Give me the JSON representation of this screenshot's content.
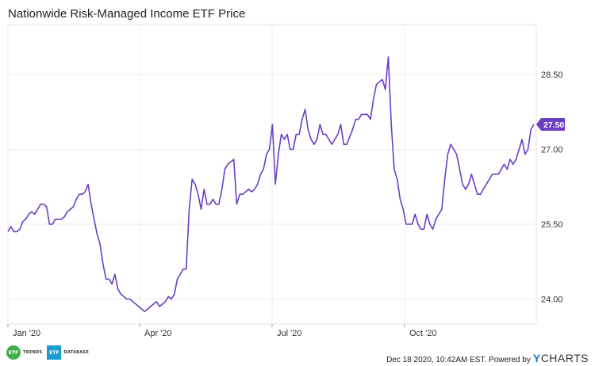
{
  "chart_data": {
    "type": "line",
    "title": "Nationwide Risk-Managed Income ETF Price",
    "x_ticks": [
      "Jan '20",
      "Apr '20",
      "Jul '20",
      "Oct '20"
    ],
    "y_ticks": [
      "24.00",
      "25.50",
      "27.00",
      "28.50"
    ],
    "ylim": [
      23.5,
      29.5
    ],
    "grid": true,
    "series": [
      {
        "color": "#6a3fc4",
        "values": [
          25.35,
          25.45,
          25.35,
          25.35,
          25.4,
          25.55,
          25.6,
          25.7,
          25.75,
          25.7,
          25.8,
          25.9,
          25.9,
          25.85,
          25.5,
          25.5,
          25.6,
          25.6,
          25.6,
          25.65,
          25.75,
          25.8,
          25.85,
          26.0,
          26.1,
          26.1,
          26.15,
          26.3,
          25.9,
          25.6,
          25.3,
          25.1,
          24.7,
          24.4,
          24.4,
          24.3,
          24.5,
          24.2,
          24.1,
          24.05,
          24.0,
          24.0,
          23.95,
          23.9,
          23.85,
          23.8,
          23.75,
          23.8,
          23.85,
          23.9,
          23.95,
          23.85,
          23.9,
          23.95,
          24.05,
          24.0,
          24.1,
          24.4,
          24.5,
          24.6,
          24.6,
          25.8,
          26.4,
          26.3,
          26.1,
          25.8,
          26.2,
          25.9,
          25.9,
          26.0,
          25.9,
          25.9,
          26.2,
          26.6,
          26.7,
          26.75,
          26.8,
          25.9,
          26.1,
          26.1,
          26.15,
          26.2,
          26.15,
          26.2,
          26.3,
          26.5,
          26.6,
          26.9,
          27.0,
          27.5,
          26.3,
          26.9,
          27.3,
          27.2,
          27.3,
          27.0,
          27.0,
          27.3,
          27.3,
          27.6,
          27.8,
          27.4,
          27.2,
          27.1,
          27.2,
          27.5,
          27.3,
          27.3,
          27.2,
          27.1,
          27.2,
          27.3,
          27.5,
          27.1,
          27.1,
          27.25,
          27.4,
          27.6,
          27.6,
          27.7,
          27.7,
          27.7,
          27.6,
          28.0,
          28.3,
          28.35,
          28.4,
          28.2,
          28.85,
          27.5,
          26.6,
          26.4,
          26.0,
          25.8,
          25.5,
          25.5,
          25.5,
          25.7,
          25.5,
          25.4,
          25.4,
          25.7,
          25.5,
          25.4,
          25.6,
          25.7,
          25.8,
          26.4,
          26.9,
          27.1,
          27.0,
          26.9,
          26.6,
          26.3,
          26.2,
          26.3,
          26.5,
          26.3,
          26.1,
          26.1,
          26.2,
          26.3,
          26.4,
          26.5,
          26.5,
          26.5,
          26.6,
          26.7,
          26.6,
          26.8,
          26.7,
          26.8,
          27.0,
          27.2,
          26.9,
          27.0,
          27.4,
          27.5
        ]
      }
    ],
    "last_value_label": "27.50"
  },
  "footer": {
    "logo1_badge": "ETF",
    "logo1_text": "TRENDS",
    "logo2_badge": "ETF",
    "logo2_text": "DATABASE",
    "timestamp": "Dec 18 2020, 10:42AM EST. Powered by",
    "brand_y": "Y",
    "brand_rest": "CHARTS"
  }
}
